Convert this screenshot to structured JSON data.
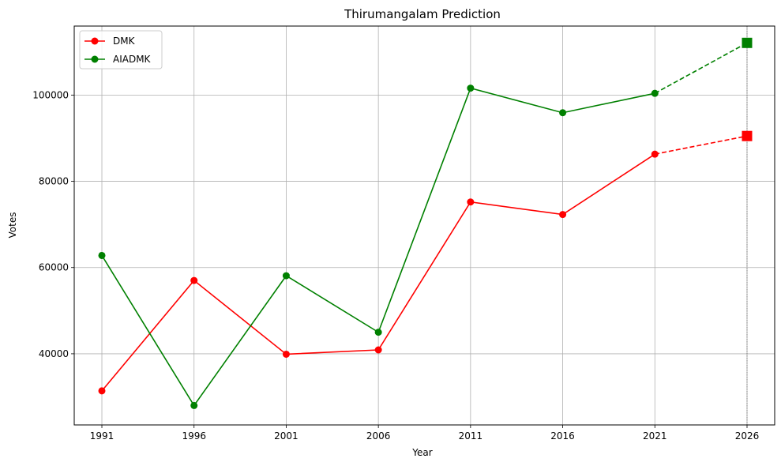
{
  "chart_data": {
    "type": "line",
    "title": "Thirumangalam Prediction",
    "xlabel": "Year",
    "ylabel": "Votes",
    "x": [
      1991,
      1996,
      2001,
      2006,
      2011,
      2016,
      2021
    ],
    "xticks": [
      1991,
      1996,
      2001,
      2006,
      2011,
      2016,
      2021,
      2026
    ],
    "yticks": [
      40000,
      60000,
      80000,
      100000
    ],
    "xlim": [
      1989.5,
      2027.5
    ],
    "ylim": [
      23500,
      116000
    ],
    "grid": true,
    "legend_position": "top-left",
    "series": [
      {
        "name": "DMK",
        "color": "#ff0000",
        "values": [
          31400,
          57000,
          39900,
          40900,
          75200,
          72300,
          86300
        ],
        "prediction": {
          "x": 2026,
          "value": 90500
        }
      },
      {
        "name": "AIADMK",
        "color": "#008000",
        "values": [
          62800,
          28000,
          58100,
          45000,
          101600,
          95900,
          100400
        ],
        "prediction": {
          "x": 2026,
          "value": 112100
        }
      }
    ],
    "prediction_marker_line": {
      "x": 2026,
      "color": "#808080",
      "style": "dotted"
    }
  }
}
